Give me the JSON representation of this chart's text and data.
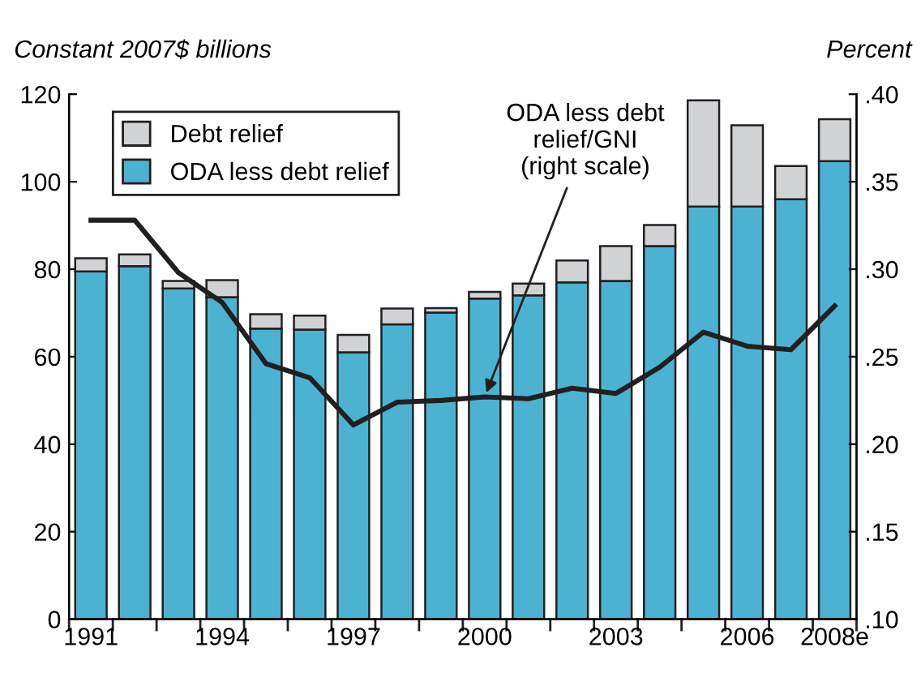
{
  "chart_data": {
    "type": "bar",
    "stacked": true,
    "ylabel": "Constant 2007$ billions",
    "y2label": "Percent",
    "categories": [
      "1991",
      null,
      null,
      "1994",
      null,
      null,
      "1997",
      null,
      null,
      "2000",
      null,
      null,
      "2003",
      null,
      null,
      "2006",
      null,
      "2008e"
    ],
    "series": [
      {
        "name": "ODA less debt relief",
        "color": "#4bb3d1",
        "values": [
          79.5,
          80.7,
          75.6,
          73.6,
          66.4,
          66.2,
          61,
          67.4,
          70.1,
          73.3,
          74,
          77,
          77.3,
          85.3,
          94.3,
          94.3,
          96,
          104.7
        ]
      },
      {
        "name": "Debt relief",
        "color": "#d0d2d4",
        "values": [
          3,
          2.7,
          1.7,
          3.9,
          3.3,
          3.2,
          4,
          3.6,
          1,
          1.5,
          2.7,
          5,
          8,
          4.8,
          24.3,
          18.6,
          7.6,
          9.6
        ]
      },
      {
        "type": "line",
        "axis": "y2",
        "color": "#231f20",
        "values": [
          0.328,
          0.328,
          0.298,
          0.281,
          0.246,
          0.238,
          0.211,
          0.224,
          0.225,
          0.227,
          0.226,
          0.232,
          0.229,
          0.244,
          0.264,
          0.256,
          0.254,
          0.279
        ]
      }
    ],
    "ylim": [
      0,
      120
    ],
    "yticks": [
      0,
      20,
      40,
      60,
      80,
      100,
      120
    ],
    "y2lim": [
      0.1,
      0.4
    ],
    "y2ticks": [
      {
        "value": 0.1,
        "label": ".10"
      },
      {
        "value": 0.15,
        "label": ".15"
      },
      {
        "value": 0.2,
        "label": ".20"
      },
      {
        "value": 0.25,
        "label": ".25"
      },
      {
        "value": 0.3,
        "label": ".30"
      },
      {
        "value": 0.35,
        "label": ".35"
      },
      {
        "value": 0.4,
        "label": ".40"
      }
    ],
    "annotations": [
      {
        "text": "ODA less debt\nrelief/GNI\n(right scale)",
        "x": "2000",
        "y": 50.8
      }
    ],
    "legend": "top left",
    "grid": false
  }
}
